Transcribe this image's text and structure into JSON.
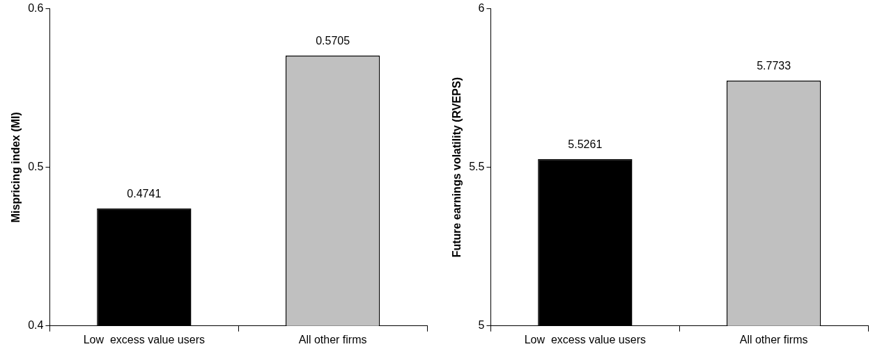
{
  "chart_data": [
    {
      "type": "bar",
      "ylabel": "Mispricing index (MI)",
      "categories": [
        "Low  excess value users",
        "All other firms"
      ],
      "values": [
        0.4741,
        0.5705
      ],
      "colors": [
        "#000000",
        "#c0c0c0"
      ],
      "ylim": [
        0.4,
        0.6
      ],
      "yticks": [
        0.4,
        0.5,
        0.6
      ],
      "data_labels": true
    },
    {
      "type": "bar",
      "ylabel": "Future earnings volatility (RVEPS)",
      "categories": [
        "Low  excess value users",
        "All other firms"
      ],
      "values": [
        5.5261,
        5.7733
      ],
      "colors": [
        "#000000",
        "#c0c0c0"
      ],
      "ylim": [
        5,
        6
      ],
      "yticks": [
        5,
        5.5,
        6
      ],
      "data_labels": true
    }
  ]
}
